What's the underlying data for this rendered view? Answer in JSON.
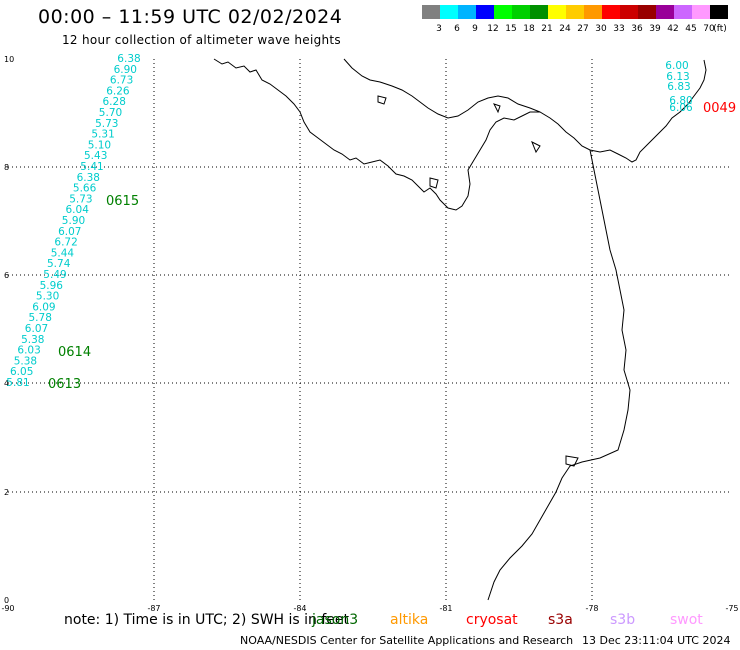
{
  "header": {
    "title": "00:00 – 11:59 UTC 02/02/2024",
    "subtitle": "12 hour collection of altimeter wave heights"
  },
  "legend": {
    "colors": [
      "#808080",
      "#00ffff",
      "#00b4ff",
      "#0000ff",
      "#00ff00",
      "#00d000",
      "#009000",
      "#ffff00",
      "#ffcc00",
      "#ff9900",
      "#ff0000",
      "#cc0000",
      "#990000",
      "#990099",
      "#cc66ff",
      "#ff99ff",
      "#000000"
    ],
    "labels": [
      "3",
      "6",
      "9",
      "12",
      "15",
      "18",
      "21",
      "24",
      "27",
      "30",
      "33",
      "36",
      "39",
      "42",
      "45",
      "70",
      "(ft)"
    ]
  },
  "axes": {
    "y_ticks": [
      "0",
      "2",
      "4",
      "6",
      "8",
      "10"
    ],
    "x_ticks": [
      "-90",
      "-87",
      "-84",
      "-81",
      "-78",
      "-75"
    ]
  },
  "track_west": {
    "color": "#00cccc",
    "values": [
      "6.38",
      "6.90",
      "6.73",
      "6.26",
      "6.28",
      "5.70",
      "5.73",
      "5.31",
      "5.10",
      "5.43",
      "5.41",
      "6.38",
      "5.66",
      "5.73",
      "6.04",
      "5.90",
      "6.07",
      "6.72",
      "5.44",
      "5.74",
      "5.49",
      "5.96",
      "5.30",
      "6.09",
      "5.78",
      "6.07",
      "5.38",
      "6.03",
      "5.38",
      "6.05",
      "5.81"
    ]
  },
  "track_east": {
    "color": "#00cccc",
    "values": [
      "6.00",
      "6.13",
      "6.83",
      "6.80",
      "6.06"
    ]
  },
  "time_labels": [
    {
      "text": "0615",
      "color": "#008000"
    },
    {
      "text": "0614",
      "color": "#008000"
    },
    {
      "text": "0613",
      "color": "#008000"
    },
    {
      "text": "0049",
      "color": "#ff0000"
    }
  ],
  "footer": {
    "note": "note:  1) Time is in UTC; 2) SWH is in feet",
    "satellites": [
      {
        "name": "jason3",
        "color": "#006600"
      },
      {
        "name": "altika",
        "color": "#ff9900"
      },
      {
        "name": "cryosat",
        "color": "#ff0000"
      },
      {
        "name": "s3a",
        "color": "#990000"
      },
      {
        "name": "s3b",
        "color": "#cc99ff"
      },
      {
        "name": "swot",
        "color": "#ff99ff"
      }
    ],
    "credit": "NOAA/NESDIS Center for Satellite Applications and Research",
    "timestamp": "13 Dec 23:11:04 UTC 2024"
  }
}
